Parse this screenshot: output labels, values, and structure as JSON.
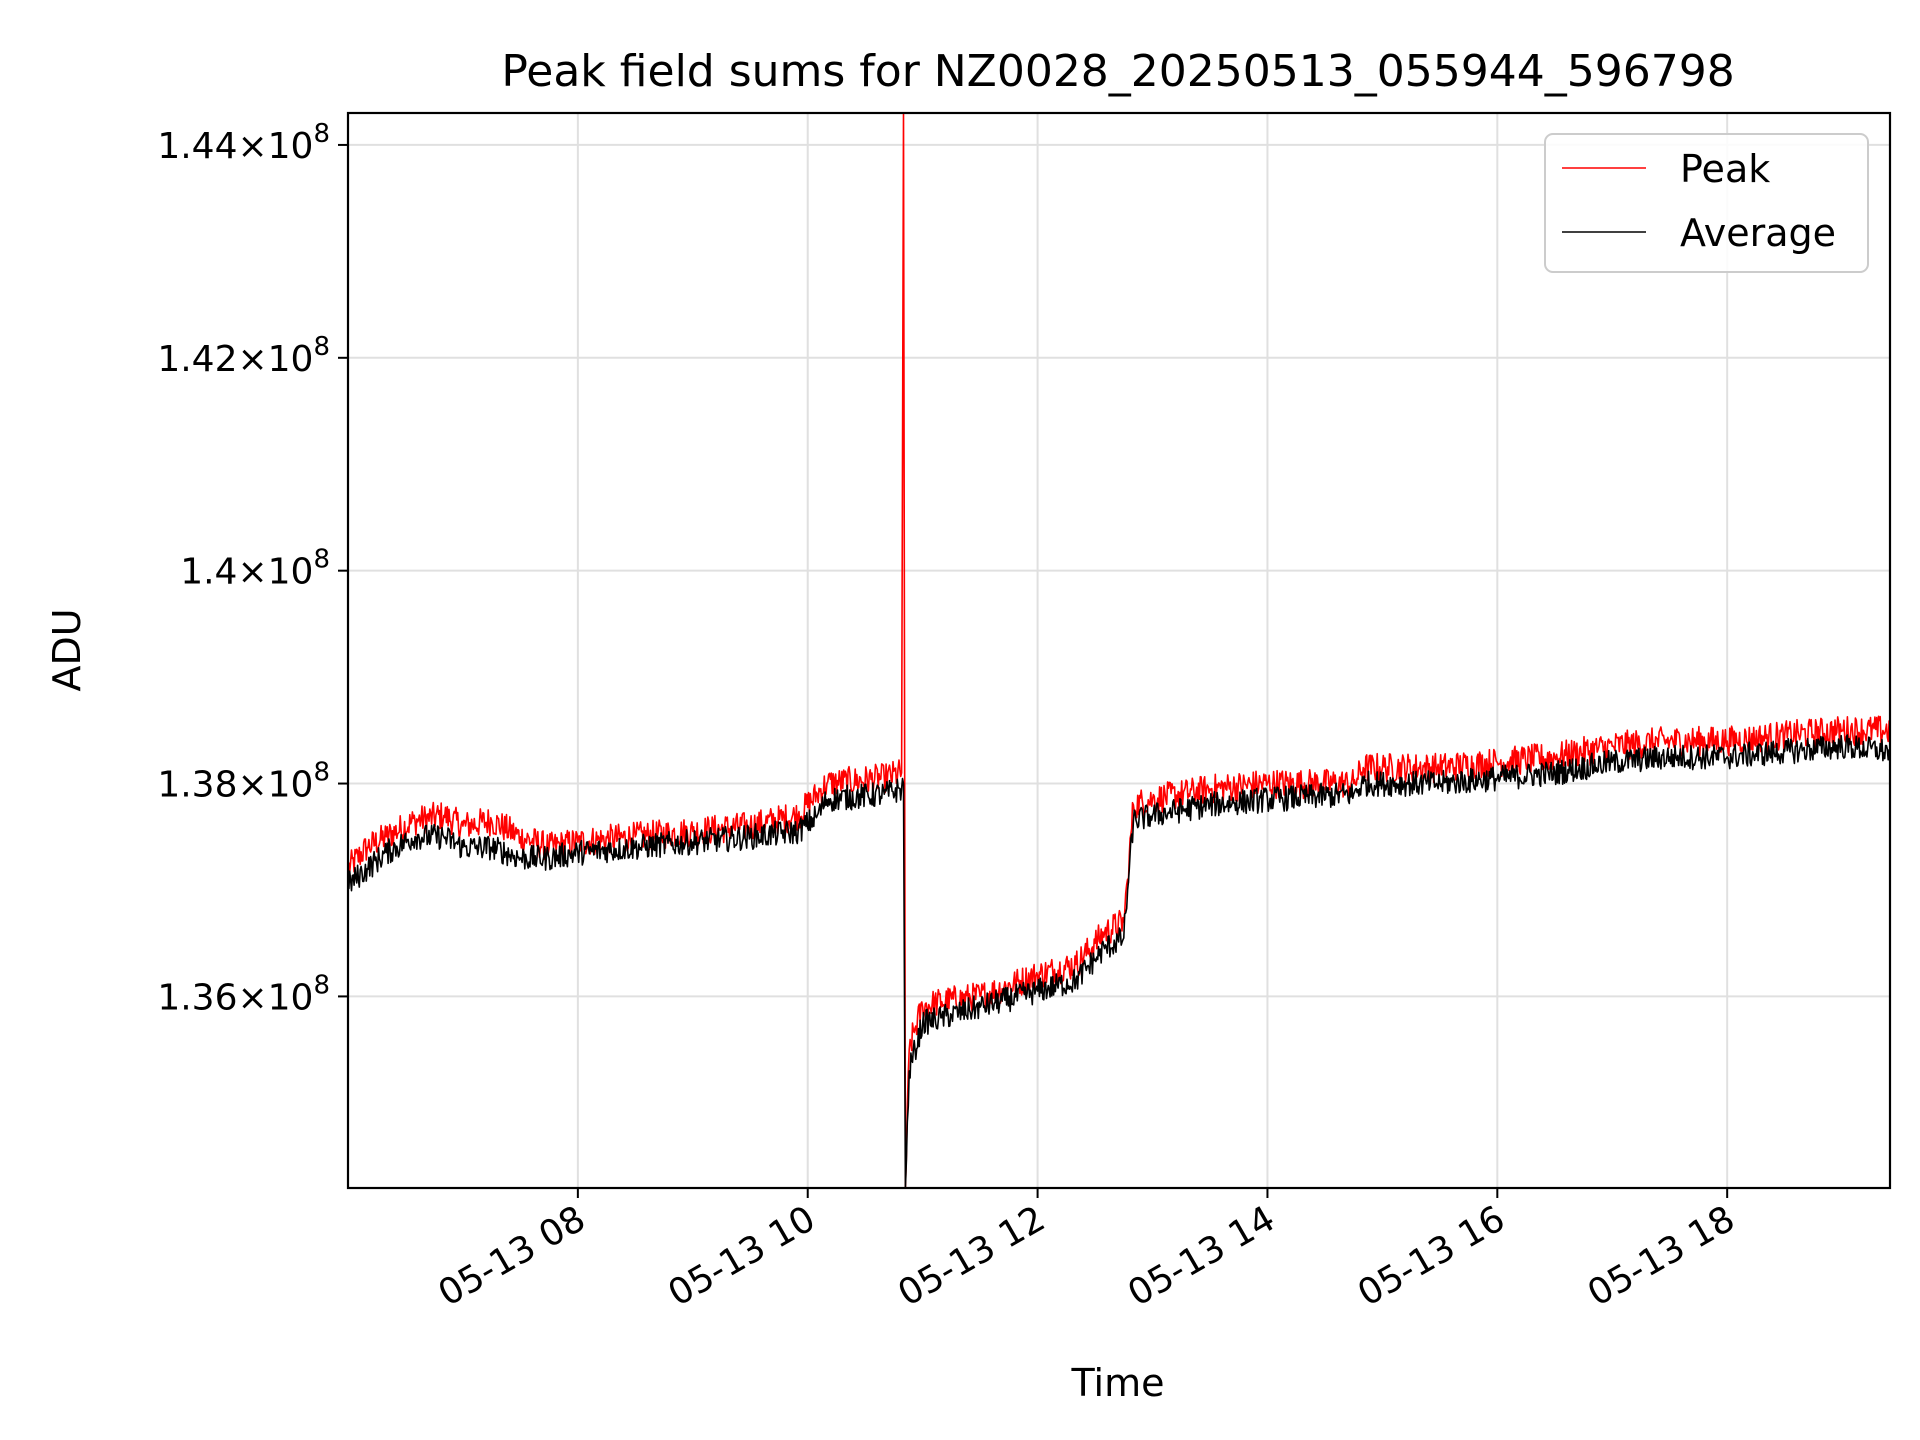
{
  "chart_data": {
    "type": "line",
    "title": "Peak field sums for NZ0028_20250513_055944_596798",
    "xlabel": "Time",
    "ylabel": "ADU",
    "x_unit": "2025-05-13 local time (hours)",
    "xlim": [
      "2025-05-13 06:00",
      "2025-05-13 19:25"
    ],
    "ylim": [
      134200000,
      144300000
    ],
    "grid": true,
    "legend_position": "top-right",
    "x_ticks": [
      {
        "value": "2025-05-13 08:00",
        "label": "05-13 08"
      },
      {
        "value": "2025-05-13 10:00",
        "label": "05-13 10"
      },
      {
        "value": "2025-05-13 12:00",
        "label": "05-13 12"
      },
      {
        "value": "2025-05-13 14:00",
        "label": "05-13 14"
      },
      {
        "value": "2025-05-13 16:00",
        "label": "05-13 16"
      },
      {
        "value": "2025-05-13 18:00",
        "label": "05-13 18"
      }
    ],
    "y_ticks": [
      {
        "value": 136000000,
        "mantissa": "1.36",
        "exp": "8"
      },
      {
        "value": 138000000,
        "mantissa": "1.38",
        "exp": "8"
      },
      {
        "value": 140000000,
        "mantissa": "1.4",
        "exp": "8"
      },
      {
        "value": 142000000,
        "mantissa": "1.42",
        "exp": "8"
      },
      {
        "value": 144000000,
        "mantissa": "1.44",
        "exp": "8"
      }
    ],
    "series": [
      {
        "name": "Peak",
        "color": "#ff0000",
        "x": [
          "06:00",
          "06:10",
          "06:20",
          "06:35",
          "06:50",
          "07:00",
          "07:15",
          "07:30",
          "07:45",
          "08:00",
          "08:30",
          "09:00",
          "09:30",
          "09:55",
          "10:05",
          "10:10",
          "10:40",
          "10:49",
          "10:50",
          "10:51",
          "10:53",
          "10:56",
          "11:00",
          "11:10",
          "11:30",
          "12:00",
          "12:20",
          "12:30",
          "12:35",
          "12:45",
          "12:47",
          "12:50",
          "13:00",
          "13:30",
          "14:00",
          "14:45",
          "14:50",
          "15:00",
          "15:30",
          "16:00",
          "16:30",
          "17:00",
          "17:30",
          "18:00",
          "18:30",
          "19:00",
          "19:25"
        ],
        "y": [
          137200000,
          137400000,
          137500000,
          137650000,
          137700000,
          137600000,
          137650000,
          137500000,
          137400000,
          137450000,
          137500000,
          137550000,
          137600000,
          137700000,
          137900000,
          138000000,
          138050000,
          138100000,
          144300000,
          134200000,
          135500000,
          135700000,
          135900000,
          135950000,
          136000000,
          136200000,
          136300000,
          136500000,
          136600000,
          136700000,
          137100000,
          137800000,
          137850000,
          137950000,
          138000000,
          138000000,
          138150000,
          138150000,
          138150000,
          138200000,
          138250000,
          138350000,
          138400000,
          138400000,
          138450000,
          138500000,
          138500000
        ]
      },
      {
        "name": "Average",
        "color": "#000000",
        "x": [
          "06:00",
          "06:10",
          "06:20",
          "06:35",
          "06:50",
          "07:00",
          "07:15",
          "07:30",
          "07:45",
          "08:00",
          "08:30",
          "09:00",
          "09:30",
          "09:55",
          "10:05",
          "10:10",
          "10:40",
          "10:49",
          "10:50",
          "10:51",
          "10:53",
          "10:56",
          "11:00",
          "11:10",
          "11:30",
          "12:00",
          "12:20",
          "12:30",
          "12:35",
          "12:45",
          "12:47",
          "12:50",
          "13:00",
          "13:30",
          "14:00",
          "14:45",
          "14:50",
          "15:00",
          "15:30",
          "16:00",
          "16:30",
          "17:00",
          "17:30",
          "18:00",
          "18:30",
          "19:00",
          "19:25"
        ],
        "y": [
          137050000,
          137200000,
          137350000,
          137500000,
          137500000,
          137400000,
          137400000,
          137300000,
          137300000,
          137350000,
          137400000,
          137450000,
          137500000,
          137550000,
          137700000,
          137850000,
          137900000,
          137950000,
          138000000,
          134200000,
          135300000,
          135500000,
          135750000,
          135800000,
          135900000,
          136050000,
          136150000,
          136350000,
          136450000,
          136550000,
          137000000,
          137650000,
          137700000,
          137800000,
          137850000,
          137900000,
          138000000,
          138000000,
          138000000,
          138050000,
          138100000,
          138200000,
          138250000,
          138250000,
          138300000,
          138350000,
          138300000
        ]
      }
    ]
  }
}
